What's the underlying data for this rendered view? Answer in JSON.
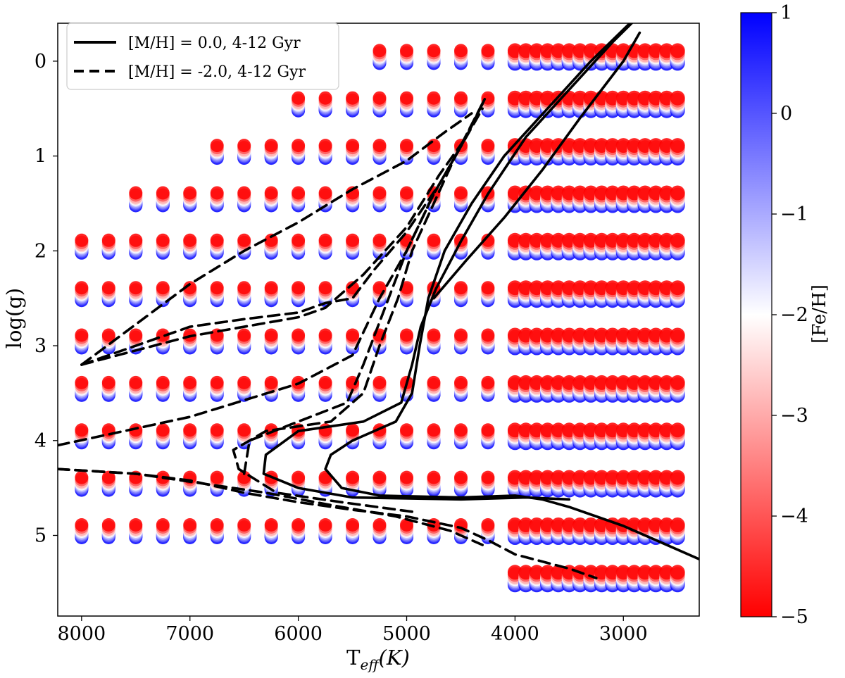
{
  "chart_data": {
    "type": "scatter",
    "title": "",
    "xlabel": "T",
    "xlabel_sub": "eff",
    "xlabel_unit": "(K)",
    "ylabel": "log(g)",
    "xlim": [
      8220,
      2300
    ],
    "ylim": [
      5.85,
      -0.4
    ],
    "x_reversed": true,
    "y_reversed": true,
    "grid": false,
    "legend_position": "top-left",
    "xticks": [
      8000,
      7000,
      6000,
      5000,
      4000,
      3000
    ],
    "xtick_labels": [
      "8000",
      "7000",
      "6000",
      "5000",
      "4000",
      "3000"
    ],
    "yticks": [
      0,
      1,
      2,
      3,
      4,
      5
    ],
    "ytick_labels": [
      "0",
      "1",
      "2",
      "3",
      "4",
      "5"
    ],
    "colorbar": {
      "label": "[Fe/H]",
      "min": -5,
      "max": 1,
      "ticks": [
        1,
        0,
        -1,
        -2,
        -3,
        -4,
        -5
      ],
      "tick_labels": [
        "1",
        "0",
        "−1",
        "−2",
        "−3",
        "−4",
        "−5"
      ],
      "cmap": "bwr_r",
      "color_low": "#ff0000",
      "color_mid": "#ffffff",
      "color_high": "#0000ff"
    },
    "grid_points": {
      "description_teff": [
        8000,
        7750,
        7500,
        7250,
        7000,
        6750,
        6500,
        6250,
        6000,
        5750,
        5500,
        5250,
        5000,
        4750,
        4500,
        4250,
        4000,
        3900,
        3800,
        3700,
        3600,
        3500,
        3400,
        3300,
        3200,
        3100,
        3000,
        2900,
        2800,
        2700,
        2600,
        2500
      ],
      "hot_logg_min": {
        "8000": 2.0,
        "7750": 2.0,
        "7500": 1.5,
        "7250": 1.5,
        "7000": 1.5,
        "6750": 1.0,
        "6500": 1.0,
        "6250": 1.0,
        "6000": 0.5,
        "5750": 0.5,
        "5500": 0.5,
        "5250": 0.0,
        "5000": 0.0,
        "4750": 0.0,
        "4500": 0.0,
        "4250": 0.0
      },
      "hot_logg_max": 5.0,
      "cool_logg_min": 0.0,
      "cool_logg_max": 5.5,
      "feh_values": [
        1.0,
        0.5,
        0.25,
        0.0,
        -0.25,
        -0.5,
        -1.0,
        -1.5,
        -2.0,
        -2.5,
        -3.0,
        -4.0,
        -5.0
      ]
    },
    "series": [
      {
        "name": "[M/H] = 0.0, 4-12 Gyr",
        "style": "solid",
        "color": "#000000",
        "tracks": [
          [
            [
              2300,
              5.25
            ],
            [
              2700,
              5.05
            ],
            [
              3000,
              4.9
            ],
            [
              3250,
              4.8
            ],
            [
              3500,
              4.7
            ],
            [
              3750,
              4.62
            ],
            [
              4000,
              4.58
            ],
            [
              4500,
              4.6
            ],
            [
              5250,
              4.58
            ],
            [
              5600,
              4.5
            ],
            [
              5750,
              4.3
            ],
            [
              5700,
              4.15
            ],
            [
              5500,
              4.0
            ],
            [
              5100,
              3.8
            ],
            [
              4950,
              3.5
            ],
            [
              4880,
              3.0
            ],
            [
              4800,
              2.5
            ],
            [
              4650,
              2.0
            ],
            [
              4400,
              1.5
            ],
            [
              4100,
              1.0
            ],
            [
              3700,
              0.5
            ],
            [
              3300,
              0.0
            ],
            [
              2850,
              -0.5
            ]
          ],
          [
            [
              3500,
              4.62
            ],
            [
              3900,
              4.6
            ],
            [
              4500,
              4.62
            ],
            [
              5500,
              4.6
            ],
            [
              6000,
              4.5
            ],
            [
              6320,
              4.35
            ],
            [
              6300,
              4.15
            ],
            [
              6000,
              3.9
            ],
            [
              5400,
              3.8
            ],
            [
              5050,
              3.6
            ],
            [
              4950,
              3.2
            ],
            [
              4870,
              2.8
            ],
            [
              4730,
              2.4
            ],
            [
              4500,
              1.9
            ],
            [
              4250,
              1.4
            ],
            [
              3900,
              0.8
            ],
            [
              3500,
              0.3
            ],
            [
              3100,
              -0.2
            ],
            [
              2880,
              -0.45
            ]
          ],
          [
            [
              4750,
              2.5
            ],
            [
              4450,
              2.1
            ],
            [
              4100,
              1.65
            ],
            [
              3750,
              1.15
            ],
            [
              3400,
              0.6
            ],
            [
              3000,
              0.0
            ],
            [
              2850,
              -0.3
            ]
          ]
        ]
      },
      {
        "name": "[M/H] = -2.0, 4-12 Gyr",
        "style": "dashed",
        "color": "#000000",
        "tracks": [
          [
            [
              8220,
              4.3
            ],
            [
              7500,
              4.35
            ],
            [
              7000,
              4.42
            ],
            [
              6500,
              4.55
            ],
            [
              6000,
              4.65
            ],
            [
              5500,
              4.73
            ],
            [
              5000,
              4.8
            ],
            [
              4500,
              4.92
            ],
            [
              4250,
              5.05
            ],
            [
              4000,
              5.2
            ],
            [
              3500,
              5.35
            ],
            [
              3250,
              5.45
            ]
          ],
          [
            [
              8220,
              4.3
            ],
            [
              7500,
              4.35
            ],
            [
              6900,
              4.45
            ],
            [
              6300,
              4.55
            ],
            [
              5700,
              4.68
            ],
            [
              5100,
              4.8
            ],
            [
              4600,
              4.95
            ],
            [
              4300,
              5.1
            ]
          ],
          [
            [
              4950,
              4.75
            ],
            [
              5600,
              4.65
            ],
            [
              6200,
              4.55
            ],
            [
              6550,
              4.3
            ],
            [
              6600,
              4.1
            ],
            [
              6300,
              3.9
            ],
            [
              5700,
              3.8
            ],
            [
              5400,
              3.5
            ],
            [
              5250,
              3.0
            ],
            [
              5080,
              2.5
            ],
            [
              4950,
              2.0
            ],
            [
              4750,
              1.5
            ],
            [
              4550,
              1.0
            ],
            [
              4280,
              0.4
            ]
          ],
          [
            [
              6500,
              4.35
            ],
            [
              6450,
              4.0
            ],
            [
              6000,
              3.8
            ],
            [
              5550,
              3.6
            ],
            [
              5400,
              3.2
            ],
            [
              5200,
              2.6
            ],
            [
              5000,
              2.0
            ],
            [
              4750,
              1.4
            ],
            [
              4500,
              0.9
            ],
            [
              4300,
              0.45
            ]
          ],
          [
            [
              8220,
              4.05
            ],
            [
              7000,
              3.75
            ],
            [
              6000,
              3.4
            ],
            [
              5500,
              3.1
            ],
            [
              5250,
              2.5
            ],
            [
              5000,
              2.0
            ],
            [
              4750,
              1.4
            ],
            [
              4500,
              0.9
            ],
            [
              4280,
              0.4
            ]
          ],
          [
            [
              8000,
              3.2
            ],
            [
              7000,
              2.9
            ],
            [
              6000,
              2.7
            ],
            [
              5750,
              2.6
            ],
            [
              5400,
              2.25
            ],
            [
              5000,
              1.75
            ],
            [
              4700,
              1.2
            ],
            [
              4450,
              0.8
            ],
            [
              4280,
              0.4
            ]
          ],
          [
            [
              8000,
              3.2
            ],
            [
              7000,
              2.35
            ],
            [
              6500,
              2.0
            ],
            [
              6000,
              1.7
            ],
            [
              5500,
              1.35
            ],
            [
              5000,
              1.05
            ],
            [
              4650,
              0.75
            ],
            [
              4400,
              0.55
            ]
          ],
          [
            [
              8000,
              3.2
            ],
            [
              7000,
              2.8
            ],
            [
              6500,
              2.72
            ],
            [
              6000,
              2.65
            ],
            [
              5750,
              2.55
            ],
            [
              5500,
              2.5
            ],
            [
              5300,
              2.2
            ],
            [
              5000,
              1.8
            ],
            [
              4700,
              1.3
            ],
            [
              4450,
              0.8
            ],
            [
              4300,
              0.5
            ]
          ]
        ]
      }
    ]
  }
}
